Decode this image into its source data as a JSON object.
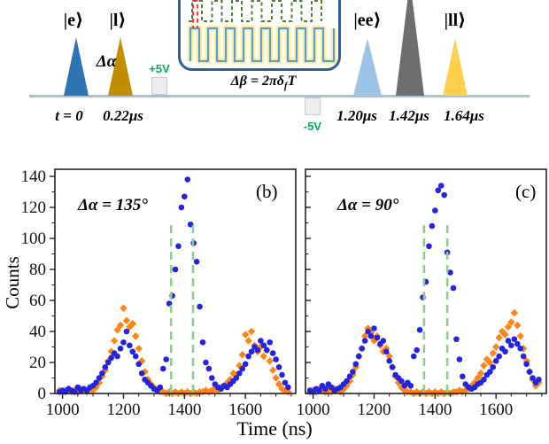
{
  "pulse_diagram": {
    "timeline_color": "#a9c0dd",
    "pulses": [
      {
        "state": "|e⟩",
        "time_label": "t = 0",
        "color": "#2e74b5"
      },
      {
        "state": "|l⟩",
        "time_label": "0.22μs",
        "color": "#bf8f00"
      },
      {
        "state": "|ee⟩",
        "time_label": "1.20μs",
        "color": "#9dc3e6"
      },
      {
        "state": "",
        "time_label": "1.42μs",
        "color": "#6e6e6e"
      },
      {
        "state": "|ll⟩",
        "time_label": "1.64μs",
        "color": "#ffd04d"
      }
    ],
    "delta_alpha_label": "Δα",
    "plus_5v": "+5V",
    "minus_5v": "-5V",
    "voltage_label_color": "#00b050",
    "inset": {
      "border_color": "#2f5e93",
      "formula_prefix": "Δβ = 2πδ",
      "formula_sub": "f",
      "formula_suffix": "T",
      "green_wave_color": "#4e7d3a",
      "blue_wave_color": "#5b9bd5",
      "halo_color": "#fff0a0",
      "red_marker_color": "#ff3333",
      "green_wave_cycles": 7,
      "blue_wave_cycles": 8
    }
  },
  "axes": {
    "ylabel": "Counts",
    "xlabel": "Time (ns)"
  },
  "chart_data": [
    {
      "type": "scatter",
      "panel": "(b)",
      "annotation": "Δα = 135°",
      "xlabel": "Time (ns)",
      "ylabel": "Counts",
      "xlim": [
        975,
        1765
      ],
      "ylim": [
        0,
        145
      ],
      "xticks": [
        1000,
        1200,
        1400,
        1600
      ],
      "yticks": [
        0,
        20,
        40,
        60,
        80,
        100,
        120,
        140
      ],
      "x_minor_step": 50,
      "y_minor_step": 10,
      "guide_lines_x": [
        1356,
        1428
      ],
      "guide_line_top": 111,
      "guide_color": "#8fcd8f",
      "x": [
        990,
        1000,
        1010,
        1020,
        1030,
        1040,
        1050,
        1060,
        1070,
        1080,
        1090,
        1100,
        1110,
        1120,
        1130,
        1140,
        1150,
        1160,
        1170,
        1180,
        1190,
        1200,
        1210,
        1220,
        1230,
        1240,
        1250,
        1260,
        1270,
        1280,
        1290,
        1300,
        1310,
        1320,
        1330,
        1340,
        1350,
        1360,
        1370,
        1380,
        1390,
        1400,
        1410,
        1420,
        1430,
        1440,
        1450,
        1460,
        1470,
        1480,
        1490,
        1500,
        1510,
        1520,
        1530,
        1540,
        1550,
        1560,
        1570,
        1580,
        1590,
        1600,
        1610,
        1620,
        1630,
        1640,
        1650,
        1660,
        1670,
        1680,
        1690,
        1700,
        1710,
        1720,
        1730,
        1740
      ],
      "series": [
        {
          "name": "blue-circles",
          "marker": "circle",
          "color": "#2424dd",
          "y": [
            1,
            2,
            1,
            3,
            2,
            1,
            4,
            2,
            3,
            2,
            4,
            5,
            7,
            10,
            13,
            17,
            20,
            23,
            26,
            24,
            29,
            33,
            40,
            31,
            27,
            24,
            19,
            13,
            9,
            7,
            5,
            3,
            2,
            4,
            16,
            22,
            58,
            63,
            80,
            95,
            120,
            127,
            138,
            109,
            97,
            85,
            56,
            33,
            20,
            16,
            10,
            6,
            4,
            3,
            5,
            4,
            6,
            8,
            10,
            13,
            16,
            19,
            24,
            27,
            30,
            28,
            34,
            31,
            28,
            33,
            26,
            22,
            17,
            12,
            7,
            4
          ]
        },
        {
          "name": "orange-diamonds",
          "marker": "diamond",
          "color": "#ff8414",
          "y": [
            2,
            1,
            2,
            3,
            1,
            2,
            1,
            3,
            2,
            1,
            3,
            2,
            4,
            7,
            11,
            15,
            21,
            27,
            34,
            41,
            44,
            55,
            47,
            43,
            45,
            37,
            29,
            21,
            14,
            9,
            6,
            4,
            2,
            1,
            1,
            0,
            1,
            0,
            1,
            0,
            1,
            0,
            1,
            0,
            1,
            0,
            1,
            1,
            2,
            1,
            2,
            3,
            2,
            4,
            5,
            7,
            9,
            13,
            12,
            18,
            25,
            38,
            34,
            40,
            31,
            27,
            30,
            24,
            28,
            21,
            15,
            10,
            6,
            3,
            2,
            1
          ]
        }
      ]
    },
    {
      "type": "scatter",
      "panel": "(c)",
      "annotation": "Δα = 90°",
      "xlabel": "Time (ns)",
      "ylabel": "Counts",
      "xlim": [
        975,
        1765
      ],
      "ylim": [
        0,
        145
      ],
      "xticks": [
        1000,
        1200,
        1400,
        1600
      ],
      "yticks": [
        0,
        20,
        40,
        60,
        80,
        100,
        120,
        140
      ],
      "x_minor_step": 50,
      "y_minor_step": 10,
      "guide_lines_x": [
        1364,
        1440
      ],
      "guide_line_top": 112,
      "guide_color": "#8fcd8f",
      "x": [
        990,
        1000,
        1010,
        1020,
        1030,
        1040,
        1050,
        1060,
        1070,
        1080,
        1090,
        1100,
        1110,
        1120,
        1130,
        1140,
        1150,
        1160,
        1170,
        1180,
        1190,
        1200,
        1210,
        1220,
        1230,
        1240,
        1250,
        1260,
        1270,
        1280,
        1290,
        1300,
        1310,
        1320,
        1330,
        1340,
        1350,
        1360,
        1370,
        1380,
        1390,
        1400,
        1410,
        1420,
        1430,
        1440,
        1450,
        1460,
        1470,
        1480,
        1490,
        1500,
        1510,
        1520,
        1530,
        1540,
        1550,
        1560,
        1570,
        1580,
        1590,
        1600,
        1610,
        1620,
        1630,
        1640,
        1650,
        1660,
        1670,
        1680,
        1690,
        1700,
        1710,
        1720,
        1730,
        1740
      ],
      "series": [
        {
          "name": "blue-circles",
          "marker": "circle",
          "color": "#2424dd",
          "y": [
            2,
            1,
            3,
            2,
            5,
            3,
            6,
            4,
            2,
            3,
            4,
            6,
            8,
            11,
            14,
            19,
            24,
            29,
            34,
            40,
            37,
            42,
            36,
            32,
            34,
            27,
            21,
            17,
            12,
            10,
            8,
            5,
            7,
            5,
            24,
            28,
            41,
            62,
            72,
            95,
            108,
            118,
            131,
            134,
            128,
            91,
            78,
            68,
            35,
            22,
            11,
            6,
            4,
            3,
            4,
            6,
            7,
            9,
            12,
            14,
            17,
            21,
            24,
            29,
            27,
            34,
            31,
            35,
            32,
            29,
            24,
            19,
            14,
            10,
            7,
            9
          ]
        },
        {
          "name": "orange-diamonds",
          "marker": "diamond",
          "color": "#ff8414",
          "y": [
            1,
            2,
            1,
            3,
            2,
            1,
            2,
            1,
            3,
            2,
            1,
            3,
            5,
            8,
            12,
            17,
            24,
            29,
            37,
            42,
            39,
            34,
            37,
            31,
            27,
            29,
            24,
            17,
            11,
            7,
            4,
            2,
            1,
            1,
            0,
            1,
            0,
            1,
            0,
            1,
            0,
            1,
            0,
            1,
            0,
            1,
            0,
            1,
            1,
            2,
            1,
            2,
            3,
            5,
            7,
            10,
            13,
            18,
            22,
            20,
            26,
            30,
            36,
            40,
            38,
            43,
            46,
            52,
            44,
            37,
            29,
            21,
            14,
            9,
            5,
            7
          ]
        }
      ]
    }
  ]
}
